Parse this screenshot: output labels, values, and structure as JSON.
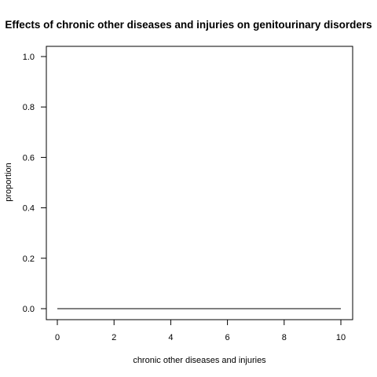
{
  "chart_data": {
    "type": "line",
    "title": "Effects of chronic other diseases and injuries on genitourinary disorders",
    "xlabel": "chronic other diseases and injuries",
    "ylabel": "proportion",
    "xlim": [
      0,
      10
    ],
    "ylim": [
      0,
      1
    ],
    "x_ticks": [
      0,
      2,
      4,
      6,
      8,
      10
    ],
    "x_tick_labels": [
      "0",
      "2",
      "4",
      "6",
      "8",
      "10"
    ],
    "y_ticks": [
      0,
      0.2,
      0.4,
      0.6,
      0.8,
      1
    ],
    "y_tick_labels": [
      "0.0",
      "0.2",
      "0.4",
      "0.6",
      "0.8",
      "1.0"
    ],
    "grid": false,
    "legend": "none",
    "series": [
      {
        "color": "#000000",
        "x": [
          0,
          1,
          2,
          3,
          4,
          5,
          6,
          7,
          8,
          9,
          10
        ],
        "y": [
          0,
          0,
          0,
          0,
          0,
          0,
          0,
          0,
          0,
          0,
          0
        ]
      }
    ]
  }
}
